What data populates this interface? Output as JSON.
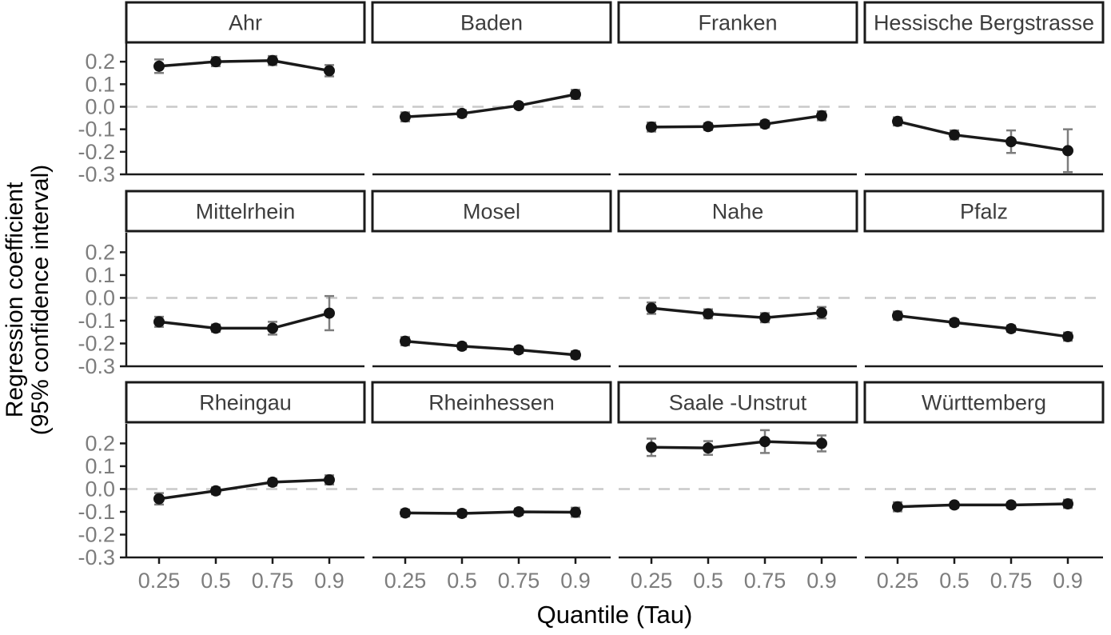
{
  "chart_data": {
    "type": "line",
    "title": "",
    "xlabel": "Quantile (Tau)",
    "ylabel_line1": "Regression coefficient",
    "ylabel_line2": "(95% confidence interval)",
    "x_categories": [
      0.25,
      0.5,
      0.75,
      0.9
    ],
    "x_tick_labels": [
      "0.25",
      "0.5",
      "0.75",
      "0.9"
    ],
    "y_ticks": [
      0.2,
      0.1,
      0.0,
      -0.1,
      -0.2,
      -0.3
    ],
    "y_tick_labels": [
      "0.2",
      "0.1",
      "0.0",
      "-0.1",
      "-0.2",
      "-0.3"
    ],
    "ylim": [
      -0.3,
      0.2857
    ],
    "grid": "off",
    "legend": "none",
    "zero_reference_line": true,
    "facet_layout": {
      "rows": 3,
      "cols": 4
    },
    "facets": [
      {
        "region": "Ahr",
        "estimates": [
          0.18,
          0.2,
          0.205,
          0.16
        ],
        "ci_half_width": [
          0.03,
          0.02,
          0.02,
          0.025
        ]
      },
      {
        "region": "Baden",
        "estimates": [
          -0.045,
          -0.03,
          0.005,
          0.055
        ],
        "ci_half_width": [
          0.02,
          0.015,
          0.012,
          0.02
        ]
      },
      {
        "region": "Franken",
        "estimates": [
          -0.09,
          -0.088,
          -0.077,
          -0.04
        ],
        "ci_half_width": [
          0.02,
          0.015,
          0.015,
          0.02
        ]
      },
      {
        "region": "Hessische Bergstrasse",
        "estimates": [
          -0.065,
          -0.125,
          -0.155,
          -0.195
        ],
        "ci_half_width": [
          0.018,
          0.02,
          0.05,
          0.095
        ]
      },
      {
        "region": "Mittelrhein",
        "estimates": [
          -0.105,
          -0.133,
          -0.133,
          -0.067
        ],
        "ci_half_width": [
          0.022,
          0.016,
          0.028,
          0.075
        ]
      },
      {
        "region": "Mosel",
        "estimates": [
          -0.19,
          -0.212,
          -0.228,
          -0.25
        ],
        "ci_half_width": [
          0.018,
          0.014,
          0.014,
          0.016
        ]
      },
      {
        "region": "Nahe",
        "estimates": [
          -0.045,
          -0.07,
          -0.087,
          -0.065
        ],
        "ci_half_width": [
          0.025,
          0.02,
          0.02,
          0.025
        ]
      },
      {
        "region": "Pfalz",
        "estimates": [
          -0.078,
          -0.108,
          -0.135,
          -0.17
        ],
        "ci_half_width": [
          0.018,
          0.014,
          0.014,
          0.018
        ]
      },
      {
        "region": "Rheingau",
        "estimates": [
          -0.043,
          -0.008,
          0.03,
          0.04
        ],
        "ci_half_width": [
          0.025,
          0.015,
          0.015,
          0.02
        ]
      },
      {
        "region": "Rheinhessen",
        "estimates": [
          -0.105,
          -0.107,
          -0.1,
          -0.102
        ],
        "ci_half_width": [
          0.015,
          0.014,
          0.014,
          0.02
        ]
      },
      {
        "region": "Saale -Unstrut",
        "estimates": [
          0.183,
          0.18,
          0.208,
          0.2
        ],
        "ci_half_width": [
          0.038,
          0.03,
          0.05,
          0.035
        ]
      },
      {
        "region": "Württemberg",
        "estimates": [
          -0.078,
          -0.07,
          -0.07,
          -0.065
        ],
        "ci_half_width": [
          0.02,
          0.012,
          0.012,
          0.018
        ]
      }
    ],
    "colors": {
      "background": "#ffffff",
      "line": "#1a1a1a",
      "point": "#141414",
      "error_bar": "#7d7d7d",
      "zero_line": "#c9c9c9",
      "axis_line": "#1a1a1a",
      "strip_border": "#1a1a1a",
      "strip_fill": "#ffffff",
      "strip_text": "#3d3d3d",
      "tick_label": "#7d7d7d",
      "axis_title": "#000000"
    }
  }
}
